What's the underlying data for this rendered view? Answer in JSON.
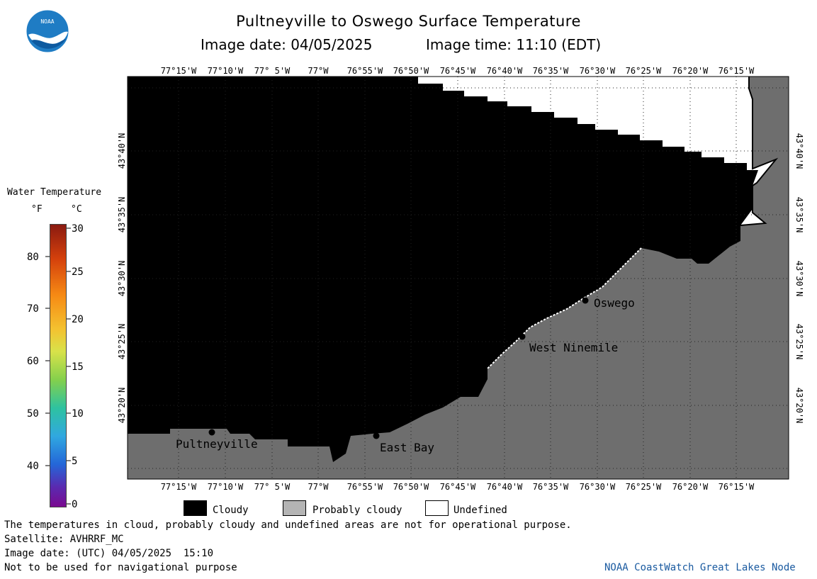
{
  "header": {
    "title": "Pultneyville to Oswego Surface Temperature",
    "image_date_label": "Image date: 04/05/2025",
    "image_time_label": "Image time: 11:10 (EDT)",
    "logo_text": "NOAA"
  },
  "map": {
    "lon_labels": [
      "77°15'W",
      "77°10'W",
      "77° 5'W",
      "77°W",
      "76°55'W",
      "76°50'W",
      "76°45'W",
      "76°40'W",
      "76°35'W",
      "76°30'W",
      "76°25'W",
      "76°20'W",
      "76°15'W"
    ],
    "lat_labels": [
      "43°40'N",
      "43°35'N",
      "43°30'N",
      "43°25'N",
      "43°20'N"
    ],
    "places": [
      {
        "name": "Pultneyville"
      },
      {
        "name": "East Bay"
      },
      {
        "name": "West Ninemile"
      },
      {
        "name": "Oswego"
      }
    ],
    "colors": {
      "cloudy": "#000000",
      "probably_cloudy": "#6e6e6e",
      "undefined": "#ffffff"
    }
  },
  "colorbar": {
    "title": "Water Temperature",
    "unit_f": "°F",
    "unit_c": "°C",
    "f_ticks": [
      "80",
      "70",
      "60",
      "50",
      "40"
    ],
    "c_ticks": [
      "30",
      "25",
      "20",
      "15",
      "10",
      "5",
      "0"
    ]
  },
  "legend": {
    "cloudy": "Cloudy",
    "probably_cloudy": "Probably cloudy",
    "undefined": "Undefined"
  },
  "footer": {
    "disclaimer": "The temperatures in cloud, probably cloudy and undefined areas are not for operational purpose.",
    "satellite": "Satellite: AVHRRF_MC",
    "utc_date": "Image date: (UTC) 04/05/2025  15:10",
    "nav_warning": "Not to be used for navigational purpose",
    "credit": "NOAA CoastWatch Great Lakes Node"
  }
}
